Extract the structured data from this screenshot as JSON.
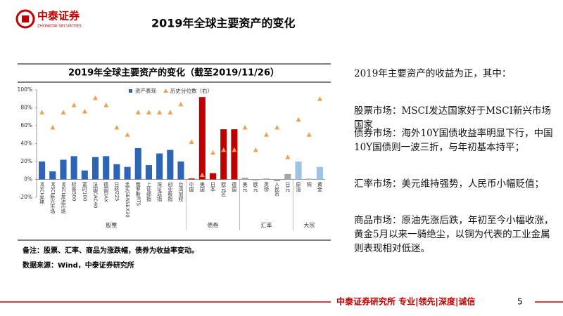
{
  "header": {
    "logo_cn": "中泰证券",
    "logo_en": "ZHONGTAI SECURITIES",
    "title": "2019年全球主要资产的变化"
  },
  "chart_data": {
    "type": "bar_marker",
    "title": "2019年全球主要资产的变化（截至2019/11/26）",
    "categories": [
      "MSCI全球",
      "MSCI新兴市场",
      "MSCI发达市场",
      "标普500",
      "富时100",
      "法国CAC40",
      "德国DAX",
      "日经225",
      "孟买SENSEX30",
      "俄罗斯RTS",
      "上证综指",
      "深证成指",
      "创业板指",
      "台湾加权",
      "中国",
      "美国",
      "日本",
      "欧元区",
      "德国",
      "美元",
      "欧元",
      "英镑",
      "人民币",
      "日元",
      "原油",
      "铜",
      "黄金"
    ],
    "groups": [
      {
        "label": "股票",
        "size": 14
      },
      {
        "label": "债券",
        "size": 5
      },
      {
        "label": "汇率",
        "size": 5
      },
      {
        "label": "大宗",
        "size": 3
      }
    ],
    "series": [
      {
        "name": "资产表现",
        "type": "bar",
        "color": "#2e64b4",
        "colors": [
          "#2e64b4",
          "#2e64b4",
          "#2e64b4",
          "#2e64b4",
          "#2e64b4",
          "#2e64b4",
          "#2e64b4",
          "#2e64b4",
          "#2e64b4",
          "#2e64b4",
          "#2e64b4",
          "#2e64b4",
          "#2e64b4",
          "#2e64b4",
          "#c00000",
          "#c00000",
          "#c00000",
          "#c00000",
          "#c00000",
          "#a6a6a6",
          "#a6a6a6",
          "#a6a6a6",
          "#a6a6a6",
          "#a6a6a6",
          "#9dc3e6",
          "#9dc3e6",
          "#9dc3e6"
        ],
        "values": [
          20,
          9,
          22,
          26,
          10,
          25,
          26,
          17,
          14,
          35,
          16,
          29,
          33,
          20,
          1,
          92,
          7,
          56,
          56,
          2,
          -1,
          1,
          -2,
          6,
          20,
          1,
          14
        ]
      },
      {
        "name": "历史分位数（右）",
        "type": "marker",
        "color": "#f0a050",
        "values": [
          75,
          58,
          75,
          83,
          76,
          91,
          83,
          58,
          50,
          75,
          75,
          75,
          75,
          84,
          42,
          5,
          30,
          33,
          33,
          58,
          33,
          50,
          58,
          25,
          67,
          50,
          90
        ]
      }
    ],
    "ylim": [
      -20,
      100
    ],
    "yticks": [
      {
        "value": -20,
        "label": "-20%"
      },
      {
        "value": 0,
        "label": "0%"
      },
      {
        "value": 20,
        "label": "20%"
      },
      {
        "value": 40,
        "label": "40%"
      },
      {
        "value": 60,
        "label": "60%"
      },
      {
        "value": 80,
        "label": "80%"
      },
      {
        "value": 100,
        "label": "100%"
      }
    ],
    "legend": "top",
    "note": "备注：股票、汇率、商品为涨跌幅，债券为收益率变动。",
    "source": "数据来源：Wind，中泰证券研究所"
  },
  "text": {
    "intro": "2019年主要资产的收益为正，其中：",
    "paragraphs": [
      "股票市场：MSCI发达国家好于MSCI新兴市场国家",
      "债券市场：海外10Y国债收益率明显下行，中国10Y国债则一波三折，与年初基本持平；",
      "汇率市场：美元维持强势，人民币小幅贬值；",
      "商品市场：原油先涨后跌，年初至今小幅收涨，黄金5月以来一骑绝尘，以铜为代表的工业金属则表现相对低迷。"
    ]
  },
  "footer": {
    "text": "中泰证券研究所 专业|领先|深度|诚信",
    "page": "5"
  }
}
